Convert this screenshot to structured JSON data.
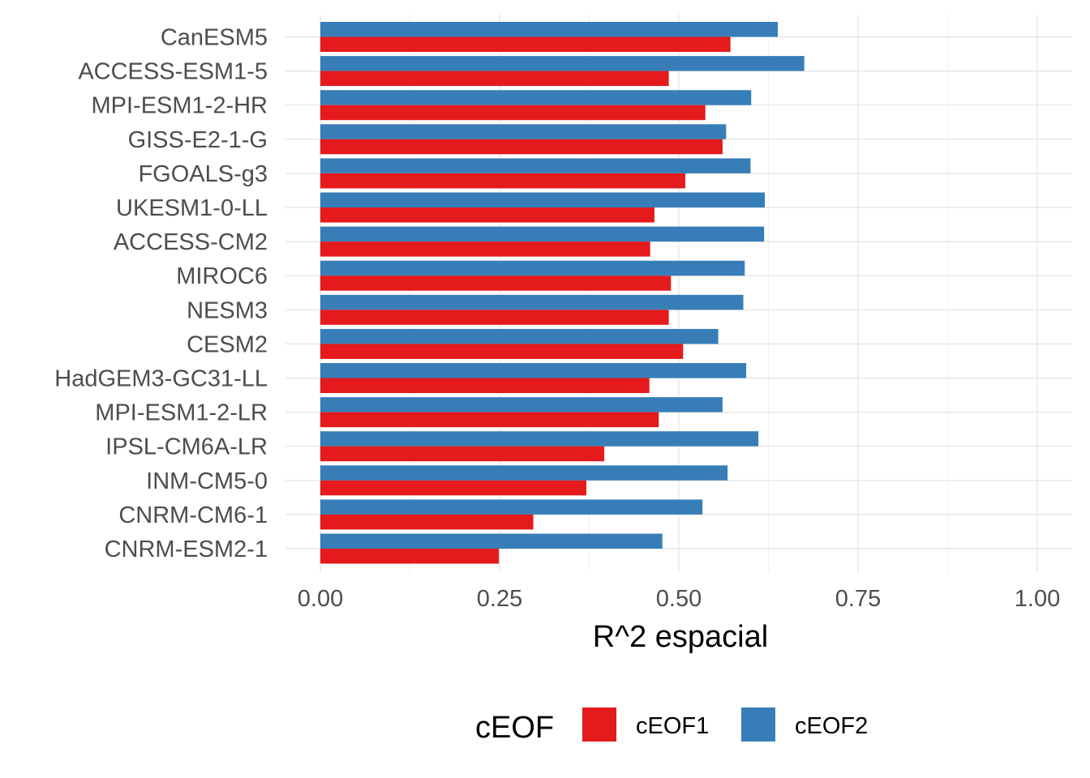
{
  "chart_data": {
    "type": "bar",
    "orientation": "horizontal",
    "categories": [
      "CanESM5",
      "ACCESS-ESM1-5",
      "MPI-ESM1-2-HR",
      "GISS-E2-1-G",
      "FGOALS-g3",
      "UKESM1-0-LL",
      "ACCESS-CM2",
      "MIROC6",
      "NESM3",
      "CESM2",
      "HadGEM3-GC31-LL",
      "MPI-ESM1-2-LR",
      "IPSL-CM6A-LR",
      "INM-CM5-0",
      "CNRM-CM6-1",
      "CNRM-ESM2-1"
    ],
    "series": [
      {
        "name": "cEOF1",
        "color": "#e41a1c",
        "values": [
          0.572,
          0.486,
          0.537,
          0.561,
          0.509,
          0.466,
          0.46,
          0.489,
          0.486,
          0.506,
          0.459,
          0.472,
          0.396,
          0.371,
          0.297,
          0.249
        ]
      },
      {
        "name": "cEOF2",
        "color": "#377eb8",
        "values": [
          0.638,
          0.675,
          0.601,
          0.566,
          0.6,
          0.62,
          0.619,
          0.592,
          0.59,
          0.555,
          0.594,
          0.561,
          0.611,
          0.568,
          0.533,
          0.477
        ]
      }
    ],
    "xlabel": "R^2 espacial",
    "xlim": [
      0,
      1.0
    ],
    "xticks": [
      0,
      0.25,
      0.5,
      0.75,
      1.0
    ],
    "xtick_labels": [
      "0.00",
      "0.25",
      "0.50",
      "0.75",
      "1.00"
    ],
    "grid": true,
    "legend": {
      "title": "cEOF",
      "position": "bottom"
    }
  }
}
